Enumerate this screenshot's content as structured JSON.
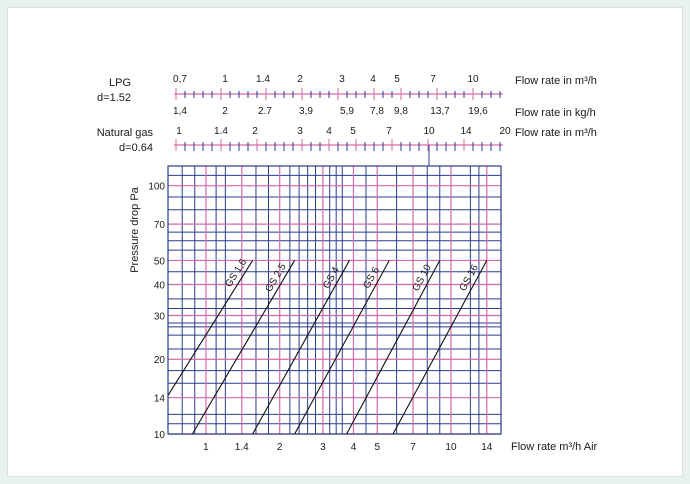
{
  "chart_data": {
    "type": "line",
    "xlabel": "Flow rate  m³/h Air",
    "ylabel": "Pressure drop  Pa",
    "x_scale": "log",
    "y_scale": "log",
    "xlim": [
      0.7,
      16
    ],
    "ylim": [
      10,
      120
    ],
    "x_ticks": [
      "1",
      "1.4",
      "2",
      "3",
      "4",
      "5",
      "7",
      "10",
      "14"
    ],
    "y_ticks": [
      "10",
      "14",
      "20",
      "30",
      "40",
      "50",
      "70",
      "100"
    ],
    "grid": true,
    "series": [
      {
        "name": "GS 1,6",
        "x": [
          0.7,
          1.55
        ],
        "y": [
          14.3,
          50
        ]
      },
      {
        "name": "GS 2,5",
        "x": [
          0.88,
          2.3
        ],
        "y": [
          10,
          50
        ]
      },
      {
        "name": "GS 4",
        "x": [
          1.55,
          3.85
        ],
        "y": [
          10,
          50
        ]
      },
      {
        "name": "GS 6",
        "x": [
          2.3,
          5.6
        ],
        "y": [
          10,
          50
        ]
      },
      {
        "name": "GS 10",
        "x": [
          3.75,
          9.0
        ],
        "y": [
          10,
          50
        ]
      },
      {
        "name": "GS 16",
        "x": [
          5.8,
          14.0
        ],
        "y": [
          10,
          50
        ]
      }
    ],
    "secondary_scales": [
      {
        "group": "LPG",
        "density": "d=1.52",
        "top_label": "Flow rate in m³/h",
        "bottom_label": "Flow rate in kg/h",
        "top_ticks": [
          "0,7",
          "1",
          "1.4",
          "2",
          "3",
          "4",
          "5",
          "7",
          "10"
        ],
        "bottom_ticks": [
          "1,4",
          "2",
          "2.7",
          "3,9",
          "5,9",
          "7,8",
          "9,8",
          "13,7",
          "19,6"
        ]
      },
      {
        "group": "Natural gas",
        "density": "d=0.64",
        "top_label": "Flow rate in m³/h",
        "top_ticks": [
          "1",
          "1.4",
          "2",
          "3",
          "4",
          "5",
          "7",
          "10",
          "14",
          "20"
        ]
      }
    ]
  },
  "colors": {
    "blue": "#2a3c8c",
    "pink": "#d36aa8",
    "line": "#111111"
  }
}
